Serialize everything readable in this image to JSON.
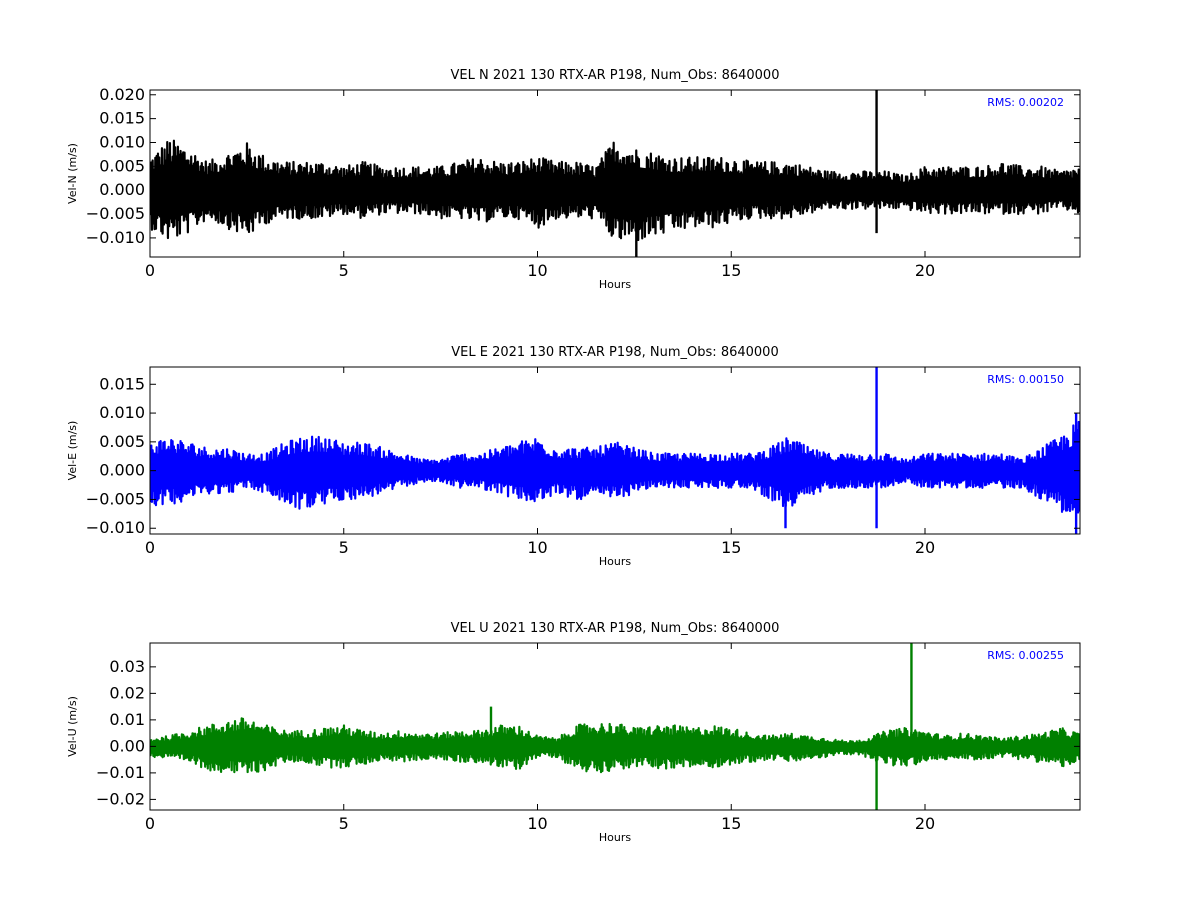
{
  "colors": {
    "N": "#000000",
    "E": "#0000ff",
    "U": "#008000",
    "rms": "#0000ff"
  },
  "chart_data": [
    {
      "type": "line",
      "title": "VEL N 2021 130 RTX-AR  P198, Num_Obs: 8640000",
      "xlabel": "Hours",
      "ylabel": "Vel-N (m/s)",
      "xlim": [
        0,
        24
      ],
      "ylim": [
        -0.014,
        0.021
      ],
      "xticks": [
        0,
        5,
        10,
        15,
        20
      ],
      "xtick_labels": [
        "0",
        "5",
        "10",
        "15",
        "20"
      ],
      "yticks": [
        -0.01,
        -0.005,
        0.0,
        0.005,
        0.01,
        0.015,
        0.02
      ],
      "ytick_labels": [
        "−0.010",
        "−0.005",
        "0.000",
        "0.005",
        "0.010",
        "0.015",
        "0.020"
      ],
      "rms_label": "RMS:  0.00202",
      "color_key": "N",
      "series": [
        {
          "x": [
            0,
            0.5,
            1,
            1.5,
            2,
            2.5,
            3,
            3.5,
            4,
            4.5,
            5,
            5.5,
            6,
            6.5,
            7,
            7.5,
            8,
            8.5,
            9,
            9.5,
            10,
            10.5,
            11,
            11.5,
            12,
            12.5,
            13,
            13.5,
            14,
            14.5,
            15,
            15.5,
            16,
            16.5,
            17,
            17.5,
            18,
            18.5,
            19,
            19.5,
            20,
            20.5,
            21,
            21.5,
            22,
            22.5,
            23,
            23.5,
            24
          ],
          "upper": [
            0.007,
            0.011,
            0.009,
            0.006,
            0.008,
            0.01,
            0.007,
            0.006,
            0.006,
            0.006,
            0.005,
            0.006,
            0.005,
            0.005,
            0.005,
            0.005,
            0.006,
            0.007,
            0.006,
            0.006,
            0.007,
            0.006,
            0.006,
            0.005,
            0.011,
            0.009,
            0.008,
            0.007,
            0.007,
            0.007,
            0.007,
            0.006,
            0.006,
            0.006,
            0.005,
            0.004,
            0.004,
            0.004,
            0.004,
            0.003,
            0.005,
            0.005,
            0.005,
            0.005,
            0.006,
            0.005,
            0.005,
            0.004,
            0.005
          ],
          "lower": [
            -0.008,
            -0.011,
            -0.009,
            -0.006,
            -0.008,
            -0.01,
            -0.007,
            -0.006,
            -0.006,
            -0.006,
            -0.005,
            -0.006,
            -0.005,
            -0.005,
            -0.005,
            -0.006,
            -0.006,
            -0.007,
            -0.006,
            -0.006,
            -0.008,
            -0.006,
            -0.006,
            -0.006,
            -0.011,
            -0.011,
            -0.01,
            -0.009,
            -0.008,
            -0.008,
            -0.007,
            -0.006,
            -0.006,
            -0.006,
            -0.005,
            -0.004,
            -0.004,
            -0.004,
            -0.004,
            -0.004,
            -0.005,
            -0.005,
            -0.005,
            -0.005,
            -0.005,
            -0.005,
            -0.005,
            -0.004,
            -0.005
          ],
          "spikes": [
            {
              "x": 18.75,
              "y0": -0.009,
              "y1": 0.021
            },
            {
              "x": 12.55,
              "y0": -0.014,
              "y1": 0.0
            }
          ]
        }
      ]
    },
    {
      "type": "line",
      "title": "VEL E 2021 130 RTX-AR  P198, Num_Obs: 8640000",
      "xlabel": "Hours",
      "ylabel": "Vel-E (m/s)",
      "xlim": [
        0,
        24
      ],
      "ylim": [
        -0.011,
        0.018
      ],
      "xticks": [
        0,
        5,
        10,
        15,
        20
      ],
      "xtick_labels": [
        "0",
        "5",
        "10",
        "15",
        "20"
      ],
      "yticks": [
        -0.01,
        -0.005,
        0.0,
        0.005,
        0.01,
        0.015
      ],
      "ytick_labels": [
        "−0.010",
        "−0.005",
        "0.000",
        "0.005",
        "0.010",
        "0.015"
      ],
      "rms_label": "RMS:  0.00150",
      "color_key": "E",
      "series": [
        {
          "x": [
            0,
            0.5,
            1,
            1.5,
            2,
            2.5,
            3,
            3.5,
            4,
            4.5,
            5,
            5.5,
            6,
            6.5,
            7,
            7.5,
            8,
            8.5,
            9,
            9.5,
            10,
            10.5,
            11,
            11.5,
            12,
            12.5,
            13,
            13.5,
            14,
            14.5,
            15,
            15.5,
            16,
            16.5,
            17,
            17.5,
            18,
            18.5,
            19,
            19.5,
            20,
            20.5,
            21,
            21.5,
            22,
            22.5,
            23,
            23.5,
            24
          ],
          "upper": [
            0.005,
            0.006,
            0.005,
            0.004,
            0.004,
            0.003,
            0.003,
            0.005,
            0.006,
            0.006,
            0.005,
            0.005,
            0.004,
            0.003,
            0.002,
            0.002,
            0.003,
            0.003,
            0.004,
            0.005,
            0.006,
            0.004,
            0.004,
            0.004,
            0.005,
            0.004,
            0.003,
            0.003,
            0.003,
            0.003,
            0.003,
            0.003,
            0.004,
            0.006,
            0.004,
            0.003,
            0.003,
            0.003,
            0.003,
            0.002,
            0.003,
            0.003,
            0.003,
            0.003,
            0.003,
            0.002,
            0.004,
            0.006,
            0.009
          ],
          "lower": [
            -0.006,
            -0.006,
            -0.005,
            -0.004,
            -0.004,
            -0.003,
            -0.004,
            -0.006,
            -0.007,
            -0.006,
            -0.005,
            -0.005,
            -0.004,
            -0.003,
            -0.002,
            -0.002,
            -0.003,
            -0.003,
            -0.004,
            -0.005,
            -0.006,
            -0.004,
            -0.005,
            -0.005,
            -0.005,
            -0.004,
            -0.003,
            -0.003,
            -0.003,
            -0.003,
            -0.003,
            -0.003,
            -0.005,
            -0.007,
            -0.005,
            -0.003,
            -0.003,
            -0.003,
            -0.003,
            -0.002,
            -0.003,
            -0.003,
            -0.003,
            -0.003,
            -0.003,
            -0.003,
            -0.005,
            -0.007,
            -0.009
          ],
          "spikes": [
            {
              "x": 18.75,
              "y0": -0.01,
              "y1": 0.018
            },
            {
              "x": 16.4,
              "y0": -0.01,
              "y1": 0.0
            },
            {
              "x": 23.9,
              "y0": -0.011,
              "y1": 0.01
            }
          ]
        }
      ]
    },
    {
      "type": "line",
      "title": "VEL U 2021 130 RTX-AR  P198, Num_Obs: 8640000",
      "xlabel": "Hours",
      "ylabel": "Vel-U (m/s)",
      "xlim": [
        0,
        24
      ],
      "ylim": [
        -0.024,
        0.039
      ],
      "xticks": [
        0,
        5,
        10,
        15,
        20
      ],
      "xtick_labels": [
        "0",
        "5",
        "10",
        "15",
        "20"
      ],
      "yticks": [
        -0.02,
        -0.01,
        0.0,
        0.01,
        0.02,
        0.03
      ],
      "ytick_labels": [
        "−0.02",
        "−0.01",
        "0.00",
        "0.01",
        "0.02",
        "0.03"
      ],
      "rms_label": "RMS:  0.00255",
      "color_key": "U",
      "series": [
        {
          "x": [
            0,
            0.5,
            1,
            1.5,
            2,
            2.5,
            3,
            3.5,
            4,
            4.5,
            5,
            5.5,
            6,
            6.5,
            7,
            7.5,
            8,
            8.5,
            9,
            9.5,
            10,
            10.5,
            11,
            11.5,
            12,
            12.5,
            13,
            13.5,
            14,
            14.5,
            15,
            15.5,
            16,
            16.5,
            17,
            17.5,
            18,
            18.5,
            19,
            19.5,
            20,
            20.5,
            21,
            21.5,
            22,
            22.5,
            23,
            23.5,
            24
          ],
          "upper": [
            0.003,
            0.004,
            0.006,
            0.008,
            0.01,
            0.011,
            0.008,
            0.006,
            0.006,
            0.007,
            0.008,
            0.006,
            0.005,
            0.006,
            0.005,
            0.005,
            0.006,
            0.006,
            0.008,
            0.008,
            0.004,
            0.003,
            0.008,
            0.009,
            0.009,
            0.007,
            0.008,
            0.008,
            0.007,
            0.008,
            0.007,
            0.005,
            0.004,
            0.005,
            0.004,
            0.003,
            0.002,
            0.003,
            0.006,
            0.007,
            0.006,
            0.004,
            0.005,
            0.004,
            0.003,
            0.004,
            0.005,
            0.007,
            0.005
          ],
          "lower": [
            -0.004,
            -0.005,
            -0.006,
            -0.009,
            -0.01,
            -0.011,
            -0.009,
            -0.006,
            -0.006,
            -0.008,
            -0.008,
            -0.007,
            -0.005,
            -0.006,
            -0.005,
            -0.005,
            -0.006,
            -0.006,
            -0.008,
            -0.009,
            -0.004,
            -0.004,
            -0.009,
            -0.01,
            -0.009,
            -0.008,
            -0.008,
            -0.009,
            -0.008,
            -0.008,
            -0.007,
            -0.006,
            -0.005,
            -0.006,
            -0.005,
            -0.004,
            -0.003,
            -0.004,
            -0.007,
            -0.008,
            -0.006,
            -0.005,
            -0.005,
            -0.005,
            -0.004,
            -0.005,
            -0.006,
            -0.008,
            -0.006
          ],
          "spikes": [
            {
              "x": 18.75,
              "y0": -0.024,
              "y1": 0.0
            },
            {
              "x": 19.65,
              "y0": 0.0,
              "y1": 0.039
            },
            {
              "x": 8.8,
              "y0": 0.0,
              "y1": 0.015
            }
          ]
        }
      ]
    }
  ]
}
